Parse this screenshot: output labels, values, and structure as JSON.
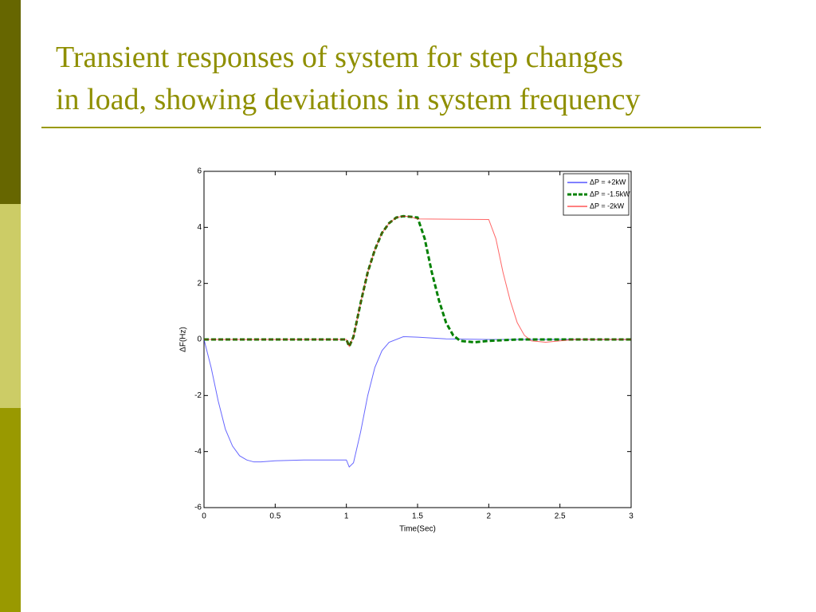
{
  "slide": {
    "title_lines": [
      "Transient responses of system for step changes",
      "in load,  showing deviations in system frequency"
    ]
  },
  "chart_data": {
    "type": "line",
    "xlabel": "Time(Sec)",
    "ylabel": "ΔF(Hz)",
    "xlim": [
      0,
      3
    ],
    "ylim": [
      -6,
      6
    ],
    "xticks": [
      0,
      0.5,
      1,
      1.5,
      2,
      2.5,
      3
    ],
    "yticks": [
      -6,
      -4,
      -2,
      0,
      2,
      4,
      6
    ],
    "legend": "upper-right",
    "series": [
      {
        "name": "ΔP = +2kW",
        "color": "#0000ff",
        "dash": false,
        "x": [
          0,
          0.05,
          0.1,
          0.15,
          0.2,
          0.25,
          0.3,
          0.35,
          0.4,
          0.5,
          0.7,
          1.0,
          1.02,
          1.05,
          1.1,
          1.15,
          1.2,
          1.25,
          1.3,
          1.4,
          1.5,
          1.7,
          2.0,
          3.0
        ],
        "values": [
          0,
          -1.0,
          -2.2,
          -3.2,
          -3.8,
          -4.15,
          -4.3,
          -4.37,
          -4.37,
          -4.33,
          -4.3,
          -4.3,
          -4.55,
          -4.4,
          -3.3,
          -2.0,
          -1.0,
          -0.4,
          -0.1,
          0.1,
          0.08,
          0.02,
          0,
          0
        ]
      },
      {
        "name": "ΔP = -1.5kW",
        "color": "#008000",
        "dash": true,
        "x": [
          0,
          1.0,
          1.02,
          1.05,
          1.1,
          1.15,
          1.2,
          1.25,
          1.3,
          1.35,
          1.4,
          1.45,
          1.5,
          1.55,
          1.6,
          1.65,
          1.7,
          1.75,
          1.8,
          1.9,
          2.0,
          2.2,
          3.0
        ],
        "values": [
          0,
          0,
          -0.25,
          0.1,
          1.3,
          2.4,
          3.2,
          3.8,
          4.15,
          4.35,
          4.4,
          4.38,
          4.35,
          3.6,
          2.4,
          1.4,
          0.6,
          0.15,
          -0.05,
          -0.1,
          -0.05,
          0,
          0
        ]
      },
      {
        "name": "ΔP = -2kW",
        "color": "#ff0000",
        "dash": false,
        "x": [
          0,
          1.0,
          1.02,
          1.05,
          1.1,
          1.15,
          1.2,
          1.25,
          1.3,
          1.35,
          1.4,
          1.45,
          1.5,
          2.0,
          2.05,
          2.1,
          2.15,
          2.2,
          2.25,
          2.3,
          2.4,
          2.5,
          2.6,
          3.0
        ],
        "values": [
          0,
          0,
          -0.25,
          0.1,
          1.3,
          2.4,
          3.2,
          3.8,
          4.15,
          4.35,
          4.4,
          4.38,
          4.3,
          4.28,
          3.6,
          2.4,
          1.4,
          0.6,
          0.15,
          -0.05,
          -0.1,
          -0.05,
          0,
          0
        ]
      }
    ]
  }
}
